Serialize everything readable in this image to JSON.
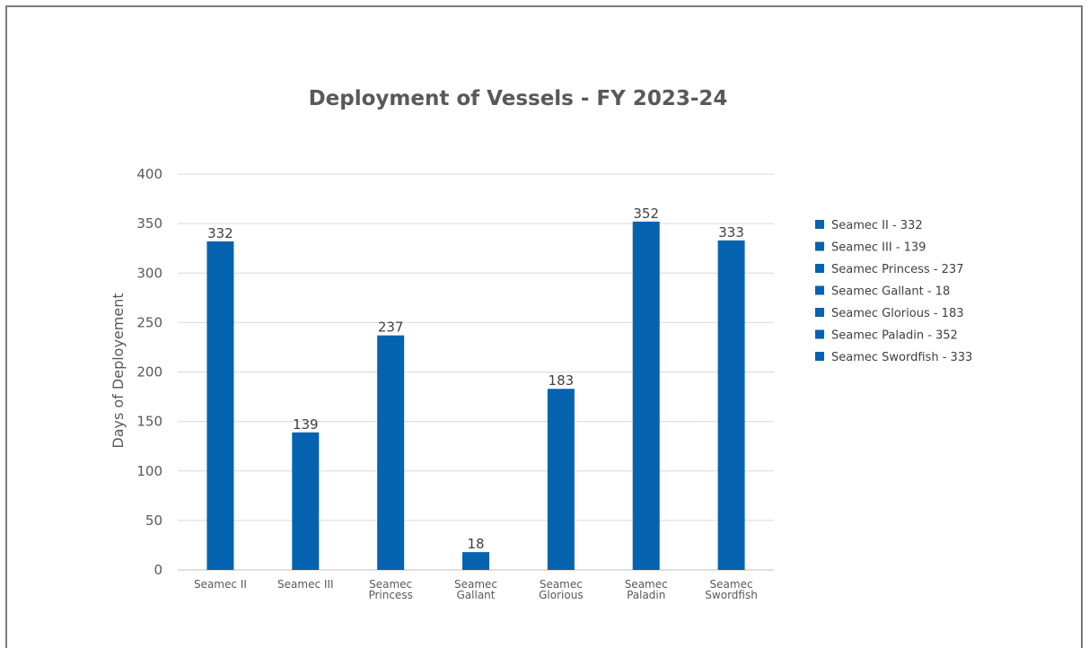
{
  "chart_data": {
    "type": "bar",
    "title": "Deployment of Vessels - FY 2023-24",
    "xlabel": "",
    "ylabel": "Days of Deployement",
    "ylim": [
      0,
      400
    ],
    "yticks": [
      0,
      50,
      100,
      150,
      200,
      250,
      300,
      350,
      400
    ],
    "grid": true,
    "legend_position": "right",
    "bar_color": "#0563b0",
    "categories": [
      [
        "Seamec II"
      ],
      [
        "Seamec III"
      ],
      [
        "Seamec",
        "Princess"
      ],
      [
        "Seamec",
        "Gallant"
      ],
      [
        "Seamec",
        "Glorious"
      ],
      [
        "Seamec",
        "Paladin"
      ],
      [
        "Seamec",
        "Swordfish"
      ]
    ],
    "values": [
      332,
      139,
      237,
      18,
      183,
      352,
      333
    ],
    "legend": [
      "Seamec II - 332",
      "Seamec III - 139",
      "Seamec Princess - 237",
      "Seamec Gallant - 18",
      "Seamec Glorious - 183",
      "Seamec Paladin - 352",
      "Seamec Swordfish - 333"
    ]
  }
}
